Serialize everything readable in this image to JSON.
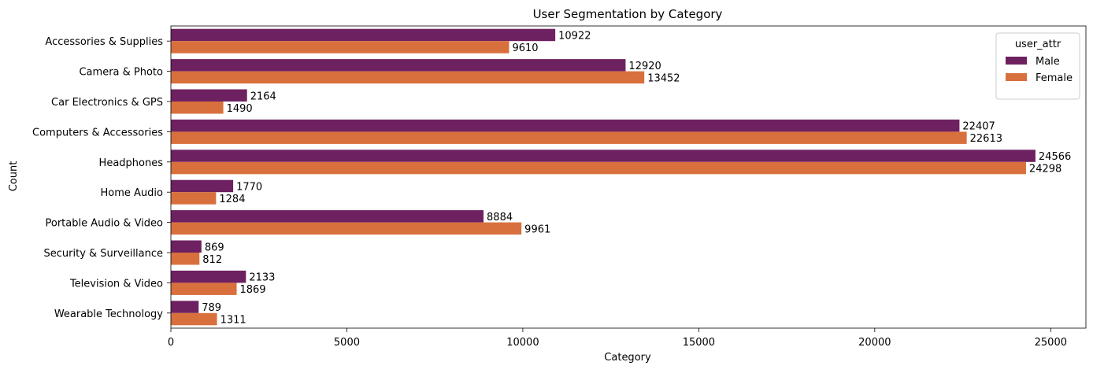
{
  "chart_data": {
    "type": "bar",
    "orientation": "horizontal",
    "title": "User Segmentation by Category",
    "xlabel": "Category",
    "ylabel": "Count",
    "xlim": [
      0,
      26000
    ],
    "xticks": [
      "0",
      "5000",
      "10000",
      "15000",
      "20000",
      "25000"
    ],
    "xtick_values": [
      0,
      5000,
      10000,
      15000,
      20000,
      25000
    ],
    "grid": false,
    "categories": [
      "Accessories & Supplies",
      "Camera & Photo",
      "Car Electronics & GPS",
      "Computers & Accessories",
      "Headphones",
      "Home Audio",
      "Portable Audio & Video",
      "Security & Surveillance",
      "Television & Video",
      "Wearable Technology"
    ],
    "series": [
      {
        "name": "Male",
        "color": "#6e2161",
        "values": [
          10922,
          12920,
          2164,
          22407,
          24566,
          1770,
          8884,
          869,
          2133,
          789
        ]
      },
      {
        "name": "Female",
        "color": "#d8703d",
        "values": [
          9610,
          13452,
          1490,
          22613,
          24298,
          1284,
          9961,
          812,
          1869,
          1311
        ]
      }
    ],
    "legend": {
      "title": "user_attr",
      "placement": "top-right"
    }
  }
}
